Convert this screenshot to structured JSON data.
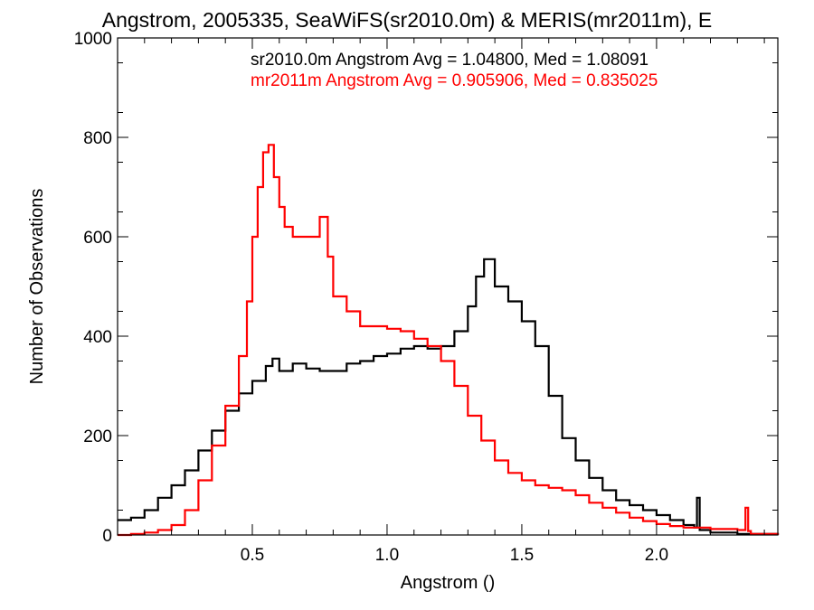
{
  "chart_data": {
    "type": "line",
    "step": true,
    "title": "Angstrom, 2005335, SeaWiFS(sr2010.0m) & MERIS(mr2011m), E",
    "xlabel": "Angstrom ()",
    "ylabel": "Number of Observations",
    "xlim": [
      0.0,
      2.45
    ],
    "ylim": [
      0,
      1000
    ],
    "x_ticks": [
      0.5,
      1.0,
      1.5,
      2.0
    ],
    "x_tick_labels": [
      "0.5",
      "1.0",
      "1.5",
      "2.0"
    ],
    "y_ticks": [
      0,
      200,
      400,
      600,
      800,
      1000
    ],
    "y_tick_labels": [
      "0",
      "200",
      "400",
      "600",
      "800",
      "1000"
    ],
    "grid": false,
    "annotations": [
      {
        "text": "sr2010.0m Angstrom Avg = 1.04800, Med = 1.08091",
        "color": "#000000"
      },
      {
        "text": "mr2011m Angstrom Avg = 0.905906, Med = 0.835025",
        "color": "#ff0000"
      }
    ],
    "series": [
      {
        "color": "#000000",
        "x": [
          0.0,
          0.05,
          0.1,
          0.15,
          0.2,
          0.25,
          0.3,
          0.35,
          0.4,
          0.45,
          0.5,
          0.55,
          0.575,
          0.6,
          0.65,
          0.7,
          0.75,
          0.8,
          0.85,
          0.9,
          0.95,
          1.0,
          1.05,
          1.1,
          1.15,
          1.2,
          1.25,
          1.3,
          1.33,
          1.36,
          1.4,
          1.45,
          1.5,
          1.55,
          1.6,
          1.65,
          1.7,
          1.75,
          1.8,
          1.85,
          1.9,
          1.95,
          2.0,
          2.05,
          2.1,
          2.14,
          2.15,
          2.16,
          2.2,
          2.3,
          2.45
        ],
        "y": [
          30,
          35,
          50,
          75,
          100,
          130,
          170,
          210,
          250,
          285,
          310,
          340,
          355,
          330,
          345,
          335,
          330,
          330,
          345,
          350,
          360,
          365,
          375,
          380,
          375,
          380,
          410,
          460,
          520,
          555,
          500,
          470,
          430,
          380,
          280,
          195,
          150,
          115,
          90,
          70,
          60,
          50,
          40,
          30,
          20,
          15,
          75,
          10,
          5,
          2,
          0
        ]
      },
      {
        "color": "#ff0000",
        "x": [
          0.0,
          0.05,
          0.1,
          0.15,
          0.2,
          0.25,
          0.3,
          0.35,
          0.4,
          0.45,
          0.48,
          0.5,
          0.52,
          0.54,
          0.56,
          0.58,
          0.6,
          0.62,
          0.65,
          0.7,
          0.75,
          0.78,
          0.8,
          0.85,
          0.9,
          0.95,
          1.0,
          1.05,
          1.1,
          1.15,
          1.2,
          1.25,
          1.3,
          1.35,
          1.4,
          1.45,
          1.5,
          1.55,
          1.6,
          1.65,
          1.7,
          1.75,
          1.8,
          1.85,
          1.9,
          1.95,
          2.0,
          2.05,
          2.1,
          2.2,
          2.3,
          2.33,
          2.34,
          2.35,
          2.45
        ],
        "y": [
          0,
          2,
          5,
          10,
          20,
          50,
          110,
          180,
          260,
          360,
          470,
          600,
          700,
          770,
          785,
          720,
          660,
          620,
          600,
          600,
          640,
          560,
          480,
          450,
          420,
          420,
          415,
          410,
          395,
          380,
          350,
          300,
          240,
          190,
          150,
          125,
          110,
          100,
          95,
          90,
          80,
          65,
          55,
          45,
          35,
          28,
          22,
          18,
          15,
          12,
          10,
          55,
          8,
          2,
          0
        ]
      }
    ]
  }
}
